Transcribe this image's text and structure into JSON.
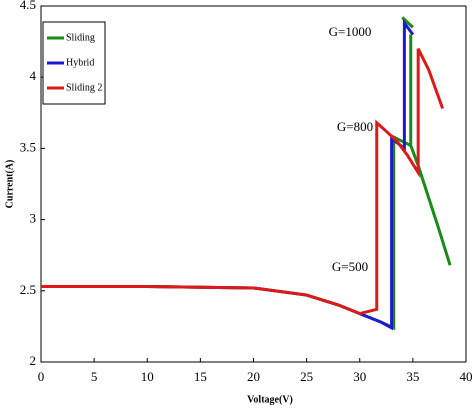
{
  "chart_data": {
    "type": "line",
    "x_label": "Voltage(V)",
    "y_label": "Current(A)",
    "xlim": [
      0,
      40
    ],
    "ylim": [
      2,
      4.5
    ],
    "xticks": [
      0,
      5,
      10,
      15,
      20,
      25,
      30,
      35,
      40
    ],
    "yticks": [
      2,
      2.5,
      3,
      3.5,
      4,
      4.5
    ],
    "legend": "upper left",
    "annotations": [
      "G=1000",
      "G=800",
      "G=500"
    ],
    "series": [
      {
        "name": "Sliding",
        "color": "#1a8a1a",
        "x": [
          0,
          10,
          20,
          25,
          28,
          30,
          32,
          33.2,
          33.2,
          34,
          34.8,
          34.8,
          null,
          34,
          35,
          null,
          34.8,
          35.5,
          36.5,
          37.5,
          38.5
        ],
        "values": [
          2.53,
          2.53,
          2.52,
          2.47,
          2.4,
          2.34,
          2.28,
          2.24,
          3.58,
          3.55,
          3.52,
          4.3,
          null,
          4.42,
          4.35,
          null,
          3.52,
          3.38,
          3.15,
          2.92,
          2.68
        ]
      },
      {
        "name": "Hybrid",
        "color": "#1a1ad0",
        "x": [
          0,
          10,
          20,
          25,
          28,
          30,
          32,
          33,
          33,
          34.2,
          34.2,
          35
        ],
        "values": [
          2.53,
          2.53,
          2.52,
          2.47,
          2.4,
          2.34,
          2.28,
          2.24,
          3.57,
          3.5,
          4.38,
          4.3
        ]
      },
      {
        "name": "Sliding 2",
        "color": "#dd1a1a",
        "x": [
          0,
          10,
          20,
          25,
          28,
          30,
          31.6,
          31.6,
          32.5,
          33.5,
          34.5,
          35.5,
          35.5,
          36.5,
          37.8
        ],
        "values": [
          2.53,
          2.53,
          2.52,
          2.47,
          2.4,
          2.34,
          2.37,
          3.68,
          3.62,
          3.55,
          3.45,
          3.33,
          4.2,
          4.05,
          3.78
        ]
      }
    ]
  }
}
